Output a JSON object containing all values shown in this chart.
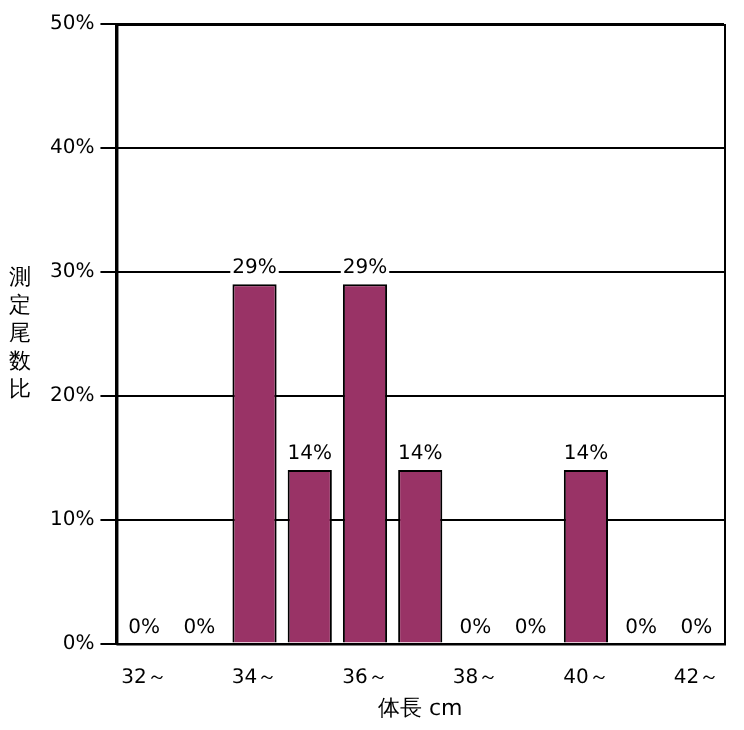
{
  "chart_data": {
    "type": "bar",
    "xlabel": "体長 cm",
    "ylabel": "測定尾数比",
    "categories": [
      "32～",
      null,
      "34～",
      null,
      "36～",
      null,
      "38～",
      null,
      "40～",
      null,
      "42～"
    ],
    "values": [
      0,
      0,
      29,
      14,
      29,
      14,
      0,
      0,
      14,
      0,
      0
    ],
    "value_labels": [
      "0%",
      "0%",
      "29%",
      "14%",
      "29%",
      "14%",
      "0%",
      "0%",
      "14%",
      "0%",
      "0%"
    ],
    "color": "#993366",
    "ylim": [
      0,
      50
    ],
    "yticks": [
      {
        "value": 0,
        "label": "0%"
      },
      {
        "value": 10,
        "label": "10%"
      },
      {
        "value": 20,
        "label": "20%"
      },
      {
        "value": 30,
        "label": "30%"
      },
      {
        "value": 40,
        "label": "40%"
      },
      {
        "value": 50,
        "label": "50%"
      }
    ],
    "grid": "y",
    "legend": false
  }
}
